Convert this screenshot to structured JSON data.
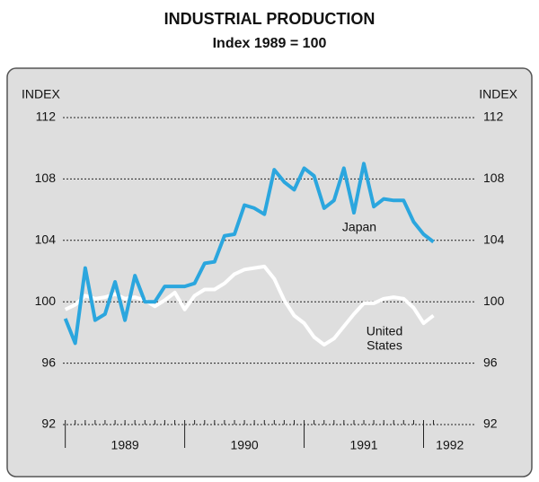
{
  "chart_data": {
    "type": "line",
    "title": "INDUSTRIAL PRODUCTION",
    "subtitle": "Index 1989 = 100",
    "y_label": "INDEX",
    "y2_label": "INDEX",
    "x": [
      1989,
      1989.083,
      1989.167,
      1989.25,
      1989.333,
      1989.417,
      1989.5,
      1989.583,
      1989.667,
      1989.75,
      1989.833,
      1989.917,
      1990,
      1990.083,
      1990.167,
      1990.25,
      1990.333,
      1990.417,
      1990.5,
      1990.583,
      1990.667,
      1990.75,
      1990.833,
      1990.917,
      1991,
      1991.083,
      1991.167,
      1991.25,
      1991.333,
      1991.417,
      1991.5,
      1991.583,
      1991.667,
      1991.75,
      1991.833,
      1991.917,
      1992,
      1992.083
    ],
    "series": [
      {
        "name": "United States",
        "color": "#ffffff",
        "values": [
          99.5,
          99.8,
          100.4,
          100.2,
          100.3,
          100.5,
          100.2,
          100.3,
          100.1,
          99.7,
          100.1,
          100.6,
          99.5,
          100.4,
          100.8,
          100.8,
          101.2,
          101.8,
          102.1,
          102.2,
          102.3,
          101.5,
          100.1,
          99.1,
          98.6,
          97.7,
          97.2,
          97.6,
          98.4,
          99.2,
          99.9,
          99.9,
          100.2,
          100.3,
          100.2,
          99.6,
          98.6,
          99.1
        ]
      },
      {
        "name": "Japan",
        "color": "#2ba6de",
        "values": [
          98.9,
          97.3,
          102.2,
          98.8,
          99.2,
          101.3,
          98.8,
          101.7,
          100.0,
          100.0,
          101.0,
          101.0,
          101.0,
          101.2,
          102.5,
          102.6,
          104.3,
          104.4,
          106.3,
          106.1,
          105.7,
          108.6,
          107.8,
          107.3,
          108.7,
          108.2,
          106.1,
          106.6,
          108.7,
          105.8,
          109.0,
          106.2,
          106.7,
          106.6,
          106.6,
          105.2,
          104.4,
          103.9
        ]
      }
    ],
    "annotations": [
      {
        "text": "Japan"
      },
      {
        "text": "United"
      },
      {
        "text": "States"
      }
    ],
    "xlim": [
      1988.98,
      1992.44
    ],
    "xticks": [
      {
        "value": 1989,
        "label": "1989"
      },
      {
        "value": 1990,
        "label": "1990"
      },
      {
        "value": 1991,
        "label": "1991"
      },
      {
        "value": 1992,
        "label": "1992"
      }
    ],
    "ylim": [
      92,
      112
    ],
    "yticks": [
      92,
      96,
      100,
      104,
      108,
      112
    ],
    "y2lim": [
      92,
      112
    ],
    "y2ticks": [
      92,
      96,
      100,
      104,
      108,
      112
    ],
    "grid": true,
    "background": "#dedede"
  }
}
